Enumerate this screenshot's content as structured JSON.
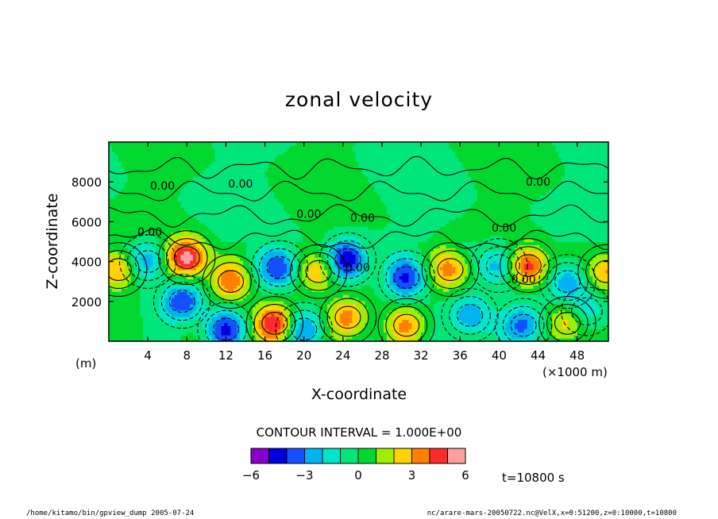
{
  "chart_data": {
    "type": "heatmap",
    "title": "zonal velocity",
    "xlabel": "X-coordinate",
    "ylabel": "Z-coordinate",
    "x_unit": "(×1000 m)",
    "y_unit": "(m)",
    "xlim": [
      0,
      51.2
    ],
    "ylim": [
      0,
      10000
    ],
    "x_ticks": [
      "4",
      "8",
      "12",
      "16",
      "20",
      "24",
      "28",
      "32",
      "36",
      "40",
      "44",
      "48"
    ],
    "x_tick_values": [
      4,
      8,
      12,
      16,
      20,
      24,
      28,
      32,
      36,
      40,
      44,
      48
    ],
    "y_ticks": [
      "2000",
      "4000",
      "6000",
      "8000"
    ],
    "y_tick_values": [
      2000,
      4000,
      6000,
      8000
    ],
    "contour_labels": [
      {
        "text": "0.00",
        "x": 5.5,
        "z": 7600
      },
      {
        "text": "0.00",
        "x": 13.5,
        "z": 7700
      },
      {
        "text": "0.00",
        "x": 20.5,
        "z": 6200
      },
      {
        "text": "0.00",
        "x": 26.0,
        "z": 6000
      },
      {
        "text": "0.00",
        "x": 4.2,
        "z": 5300
      },
      {
        "text": "0.00",
        "x": 40.5,
        "z": 5500
      },
      {
        "text": "0.00",
        "x": 44.0,
        "z": 7800
      },
      {
        "text": "0.00",
        "x": 25.5,
        "z": 3500
      },
      {
        "text": "0.00",
        "x": 42.5,
        "z": 2900
      }
    ],
    "anomalies": [
      {
        "x": 1.0,
        "z": 3600,
        "value": 3.5
      },
      {
        "x": 4.0,
        "z": 4000,
        "value": -3
      },
      {
        "x": 8.0,
        "z": 4200,
        "value": 6
      },
      {
        "x": 7.5,
        "z": 2000,
        "value": -4
      },
      {
        "x": 12.5,
        "z": 3000,
        "value": 3.5
      },
      {
        "x": 12.0,
        "z": 600,
        "value": -4
      },
      {
        "x": 17.0,
        "z": 900,
        "value": 5
      },
      {
        "x": 17.5,
        "z": 3700,
        "value": -4
      },
      {
        "x": 21.5,
        "z": 3500,
        "value": 3
      },
      {
        "x": 24.5,
        "z": 4100,
        "value": -5
      },
      {
        "x": 24.5,
        "z": 1200,
        "value": 3.5
      },
      {
        "x": 20.0,
        "z": 600,
        "value": -3
      },
      {
        "x": 30.5,
        "z": 3200,
        "value": -4
      },
      {
        "x": 30.5,
        "z": 800,
        "value": 3
      },
      {
        "x": 35.0,
        "z": 3600,
        "value": 3.5
      },
      {
        "x": 37.0,
        "z": 1300,
        "value": -3
      },
      {
        "x": 40.0,
        "z": 3800,
        "value": -3
      },
      {
        "x": 43.0,
        "z": 3800,
        "value": 5
      },
      {
        "x": 42.5,
        "z": 800,
        "value": -3.5
      },
      {
        "x": 47.0,
        "z": 3000,
        "value": -3
      },
      {
        "x": 47.0,
        "z": 900,
        "value": 3
      },
      {
        "x": 51.0,
        "z": 3500,
        "value": 3.5
      },
      {
        "x": 49.0,
        "z": 1500,
        "value": -2
      }
    ],
    "colorbar": {
      "labels": [
        "−6",
        "−3",
        "0",
        "3",
        "6"
      ],
      "label_values": [
        -6,
        -3,
        0,
        3,
        6
      ],
      "levels": [
        -6,
        -5,
        -4,
        -3,
        -2,
        -1,
        0,
        1,
        2,
        3,
        4,
        5,
        6
      ],
      "colors": [
        "#8800cc",
        "#0000dd",
        "#1450ff",
        "#00b4f0",
        "#00e6c8",
        "#00e67a",
        "#00d830",
        "#a0ee00",
        "#ffd200",
        "#ff8000",
        "#ff2a2a",
        "#ffa0a0"
      ]
    },
    "contour_interval": "CONTOUR INTERVAL = 1.000E+00",
    "time_label": "t=10800 s"
  },
  "footer": {
    "left": "/home/kitamo/bin/gpview_dump   2005-07-24",
    "right": "nc/arare-mars-20050722.nc@VelX,x=0:51200,z=0:10000,t=10800"
  }
}
